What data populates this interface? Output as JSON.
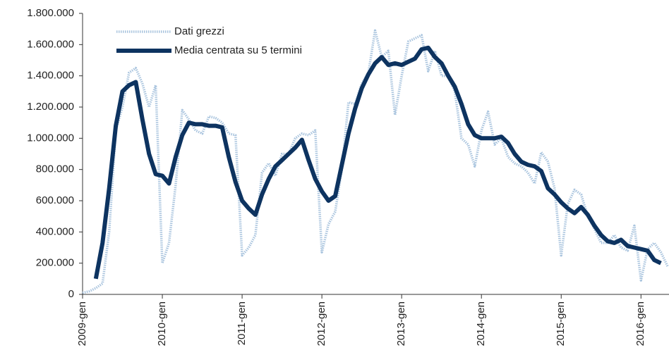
{
  "chart_data": {
    "type": "line",
    "categories": [
      "2009-gen",
      null,
      null,
      null,
      null,
      null,
      null,
      null,
      null,
      null,
      null,
      null,
      "2010-gen",
      null,
      null,
      null,
      null,
      null,
      null,
      null,
      null,
      null,
      null,
      null,
      "2011-gen",
      null,
      null,
      null,
      null,
      null,
      null,
      null,
      null,
      null,
      null,
      null,
      "2012-gen",
      null,
      null,
      null,
      null,
      null,
      null,
      null,
      null,
      null,
      null,
      null,
      "2013-gen",
      null,
      null,
      null,
      null,
      null,
      null,
      null,
      null,
      null,
      null,
      null,
      "2014-gen",
      null,
      null,
      null,
      null,
      null,
      null,
      null,
      null,
      null,
      null,
      null,
      "2015-gen",
      null,
      null,
      null,
      null,
      null,
      null,
      null,
      null,
      null,
      null,
      null,
      "2016-gen",
      null,
      null,
      null,
      null
    ],
    "series": [
      {
        "name": "Dati grezzi",
        "color": "#a9c4de",
        "values": [
          10000,
          20000,
          40000,
          70000,
          400000,
          1050000,
          1200000,
          1420000,
          1450000,
          1350000,
          1200000,
          1340000,
          200000,
          330000,
          700000,
          1180000,
          1120000,
          1050000,
          1030000,
          1140000,
          1130000,
          1100000,
          1030000,
          1020000,
          250000,
          300000,
          380000,
          780000,
          840000,
          760000,
          900000,
          900000,
          1000000,
          1030000,
          1020000,
          1050000,
          270000,
          450000,
          530000,
          800000,
          1230000,
          1220000,
          1350000,
          1420000,
          1690000,
          1520000,
          1560000,
          1150000,
          1400000,
          1620000,
          1640000,
          1660000,
          1430000,
          1560000,
          1400000,
          1400000,
          1300000,
          1000000,
          960000,
          820000,
          1050000,
          1170000,
          960000,
          1000000,
          880000,
          840000,
          820000,
          780000,
          710000,
          910000,
          850000,
          680000,
          250000,
          580000,
          670000,
          640000,
          500000,
          420000,
          330000,
          330000,
          380000,
          300000,
          280000,
          440000,
          90000,
          290000,
          330000,
          270000,
          180000
        ]
      },
      {
        "name": "Media centrata su 5 termini",
        "color": "#0d3360",
        "values": [
          null,
          null,
          100000,
          330000,
          680000,
          1080000,
          1300000,
          1340000,
          1360000,
          1120000,
          900000,
          770000,
          760000,
          710000,
          880000,
          1020000,
          1100000,
          1090000,
          1090000,
          1080000,
          1080000,
          1070000,
          880000,
          720000,
          600000,
          550000,
          510000,
          640000,
          740000,
          820000,
          860000,
          900000,
          940000,
          990000,
          860000,
          740000,
          660000,
          600000,
          630000,
          830000,
          1030000,
          1190000,
          1320000,
          1410000,
          1480000,
          1520000,
          1470000,
          1480000,
          1470000,
          1490000,
          1510000,
          1570000,
          1580000,
          1520000,
          1480000,
          1400000,
          1330000,
          1220000,
          1090000,
          1020000,
          1000000,
          1000000,
          1000000,
          1010000,
          970000,
          900000,
          850000,
          830000,
          820000,
          790000,
          680000,
          640000,
          590000,
          550000,
          520000,
          560000,
          510000,
          440000,
          380000,
          340000,
          330000,
          350000,
          310000,
          300000,
          290000,
          280000,
          220000,
          200000,
          null
        ]
      }
    ],
    "ylim": [
      0,
      1800000
    ],
    "yticks": [
      0,
      {
        "value": 200000,
        "label": "200.000"
      },
      {
        "value": 400000,
        "label": "400.000"
      },
      {
        "value": 600000,
        "label": "600.000"
      },
      {
        "value": 800000,
        "label": "800.000"
      },
      {
        "value": 1000000,
        "label": "1.000.000"
      },
      {
        "value": 1200000,
        "label": "1.200.000"
      },
      {
        "value": 1400000,
        "label": "1.400.000"
      },
      {
        "value": 1600000,
        "label": "1.600.000"
      },
      {
        "value": 1800000,
        "label": "1.800.000"
      }
    ],
    "grid": false,
    "legend": "upper left"
  }
}
